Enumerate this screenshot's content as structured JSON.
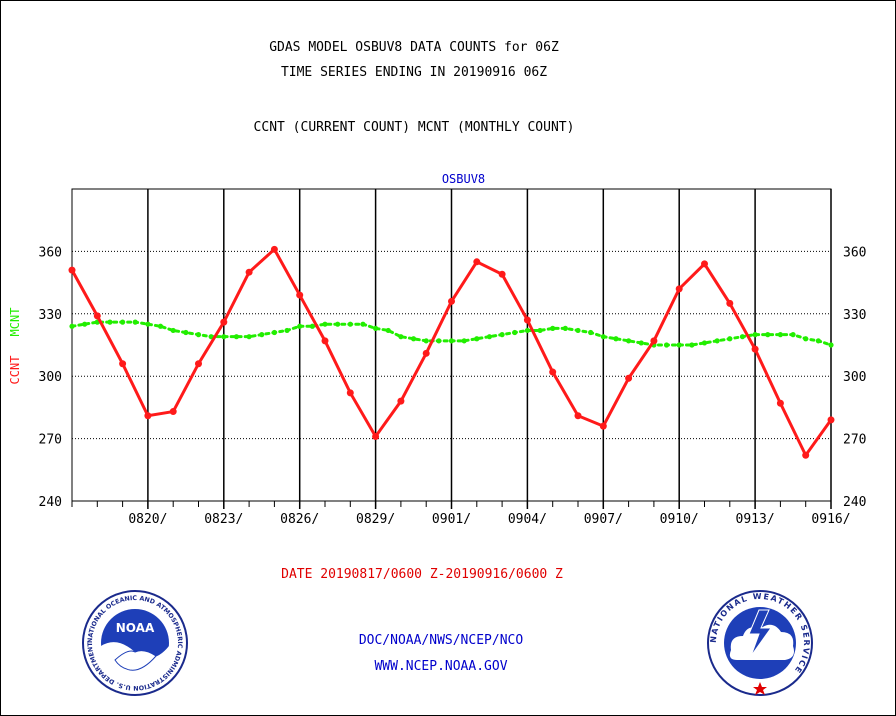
{
  "header": {
    "title_line1": "GDAS MODEL OSBUV8 DATA COUNTS for 06Z",
    "title_line2": "TIME SERIES ENDING IN 20190916 06Z",
    "subtitle": "CCNT (CURRENT COUNT) MCNT (MONTHLY COUNT)"
  },
  "footer": {
    "date_range": "DATE 20190817/0600 Z-20190916/0600 Z",
    "org": "DOC/NOAA/NWS/NCEP/NCO",
    "url": "WWW.NCEP.NOAA.GOV"
  },
  "logos": {
    "left": {
      "name": "noaa-logo",
      "text": "NOAA",
      "ring_text": "NATIONAL OCEANIC AND ATMOSPHERIC ADMINISTRATION U.S. DEPARTMENT OF COMMERCE"
    },
    "right": {
      "name": "nws-logo",
      "ring_text": "NATIONAL WEATHER SERVICE"
    }
  },
  "chart_data": {
    "type": "line",
    "title": "OSBUV8",
    "ylabel_ccnt": "CCNT",
    "ylabel_mcnt": "MCNT",
    "ylim": [
      240,
      390
    ],
    "yticks": [
      240,
      270,
      300,
      330,
      360
    ],
    "xlim": [
      0,
      30
    ],
    "xticks": [
      {
        "x": 3,
        "label": "0820/"
      },
      {
        "x": 6,
        "label": "0823/"
      },
      {
        "x": 9,
        "label": "0826/"
      },
      {
        "x": 12,
        "label": "0829/"
      },
      {
        "x": 15,
        "label": "0901/"
      },
      {
        "x": 18,
        "label": "0904/"
      },
      {
        "x": 21,
        "label": "0907/"
      },
      {
        "x": 24,
        "label": "0910/"
      },
      {
        "x": 27,
        "label": "0913/"
      },
      {
        "x": 30,
        "label": "0916/"
      }
    ],
    "grid": true,
    "colors": {
      "ccnt": "#ff1a1a",
      "mcnt": "#22ee00",
      "title": "#0000cc",
      "axis": "#000000"
    },
    "series": [
      {
        "name": "CCNT",
        "style": "solid",
        "x": [
          0,
          1,
          2,
          3,
          4,
          5,
          6,
          7,
          8,
          9,
          10,
          11,
          12,
          13,
          14,
          15,
          16,
          17,
          18,
          19,
          20,
          21,
          22,
          23,
          24,
          25,
          26,
          27,
          28,
          29,
          30
        ],
        "values": [
          351,
          329,
          306,
          281,
          283,
          306,
          326,
          350,
          361,
          339,
          317,
          292,
          271,
          288,
          311,
          336,
          355,
          349,
          327,
          302,
          281,
          276,
          299,
          317,
          342,
          354,
          335,
          313,
          287,
          262,
          279
        ]
      },
      {
        "name": "MCNT",
        "style": "dotted",
        "x": [
          0,
          0.5,
          1,
          1.5,
          2,
          2.5,
          3,
          3.5,
          4,
          4.5,
          5,
          5.5,
          6,
          6.5,
          7,
          7.5,
          8,
          8.5,
          9,
          9.5,
          10,
          10.5,
          11,
          11.5,
          12,
          12.5,
          13,
          13.5,
          14,
          14.5,
          15,
          15.5,
          16,
          16.5,
          17,
          17.5,
          18,
          18.5,
          19,
          19.5,
          20,
          20.5,
          21,
          21.5,
          22,
          22.5,
          23,
          23.5,
          24,
          24.5,
          25,
          25.5,
          26,
          26.5,
          27,
          27.5,
          28,
          28.5,
          29,
          29.5,
          30
        ],
        "values": [
          324,
          325,
          326,
          326,
          326,
          326,
          325,
          324,
          322,
          321,
          320,
          319,
          319,
          319,
          319,
          320,
          321,
          322,
          324,
          324,
          325,
          325,
          325,
          325,
          323,
          322,
          319,
          318,
          317,
          317,
          317,
          317,
          318,
          319,
          320,
          321,
          322,
          322,
          323,
          323,
          322,
          321,
          319,
          318,
          317,
          316,
          315,
          315,
          315,
          315,
          316,
          317,
          318,
          319,
          320,
          320,
          320,
          320,
          318,
          317,
          315
        ]
      }
    ]
  }
}
